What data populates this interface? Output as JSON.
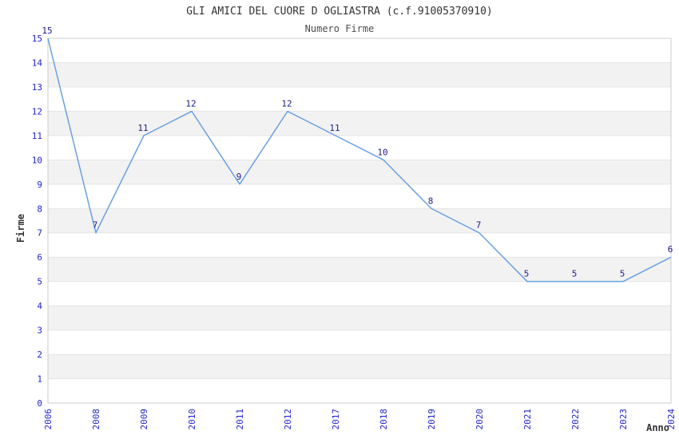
{
  "chart_data": {
    "type": "line",
    "title": "GLI AMICI DEL CUORE D OGLIASTRA (c.f.91005370910)",
    "subtitle": "Numero Firme",
    "xlabel": "Anno",
    "ylabel": "Firme",
    "categories": [
      "2006",
      "2008",
      "2009",
      "2010",
      "2011",
      "2012",
      "2017",
      "2018",
      "2019",
      "2020",
      "2021",
      "2022",
      "2023",
      "2024"
    ],
    "values": [
      15,
      7,
      11,
      12,
      9,
      12,
      11,
      10,
      8,
      7,
      5,
      5,
      5,
      6
    ],
    "ylim": [
      0,
      15
    ],
    "ytick_step": 1,
    "grid": true,
    "legend": "none",
    "band_pattern": "gray band between odd and even gridlines (1-2, 3-4, ... 13-14)",
    "data_labels_shown": true,
    "colors": {
      "line": "#69a1e0",
      "data_label": "#1a1a8c",
      "tick_label": "#2323ce",
      "title": "#333333",
      "band": "#f2f2f2",
      "grid": "#e4e4e4",
      "border": "#cccccc",
      "background": "#ffffff"
    }
  }
}
